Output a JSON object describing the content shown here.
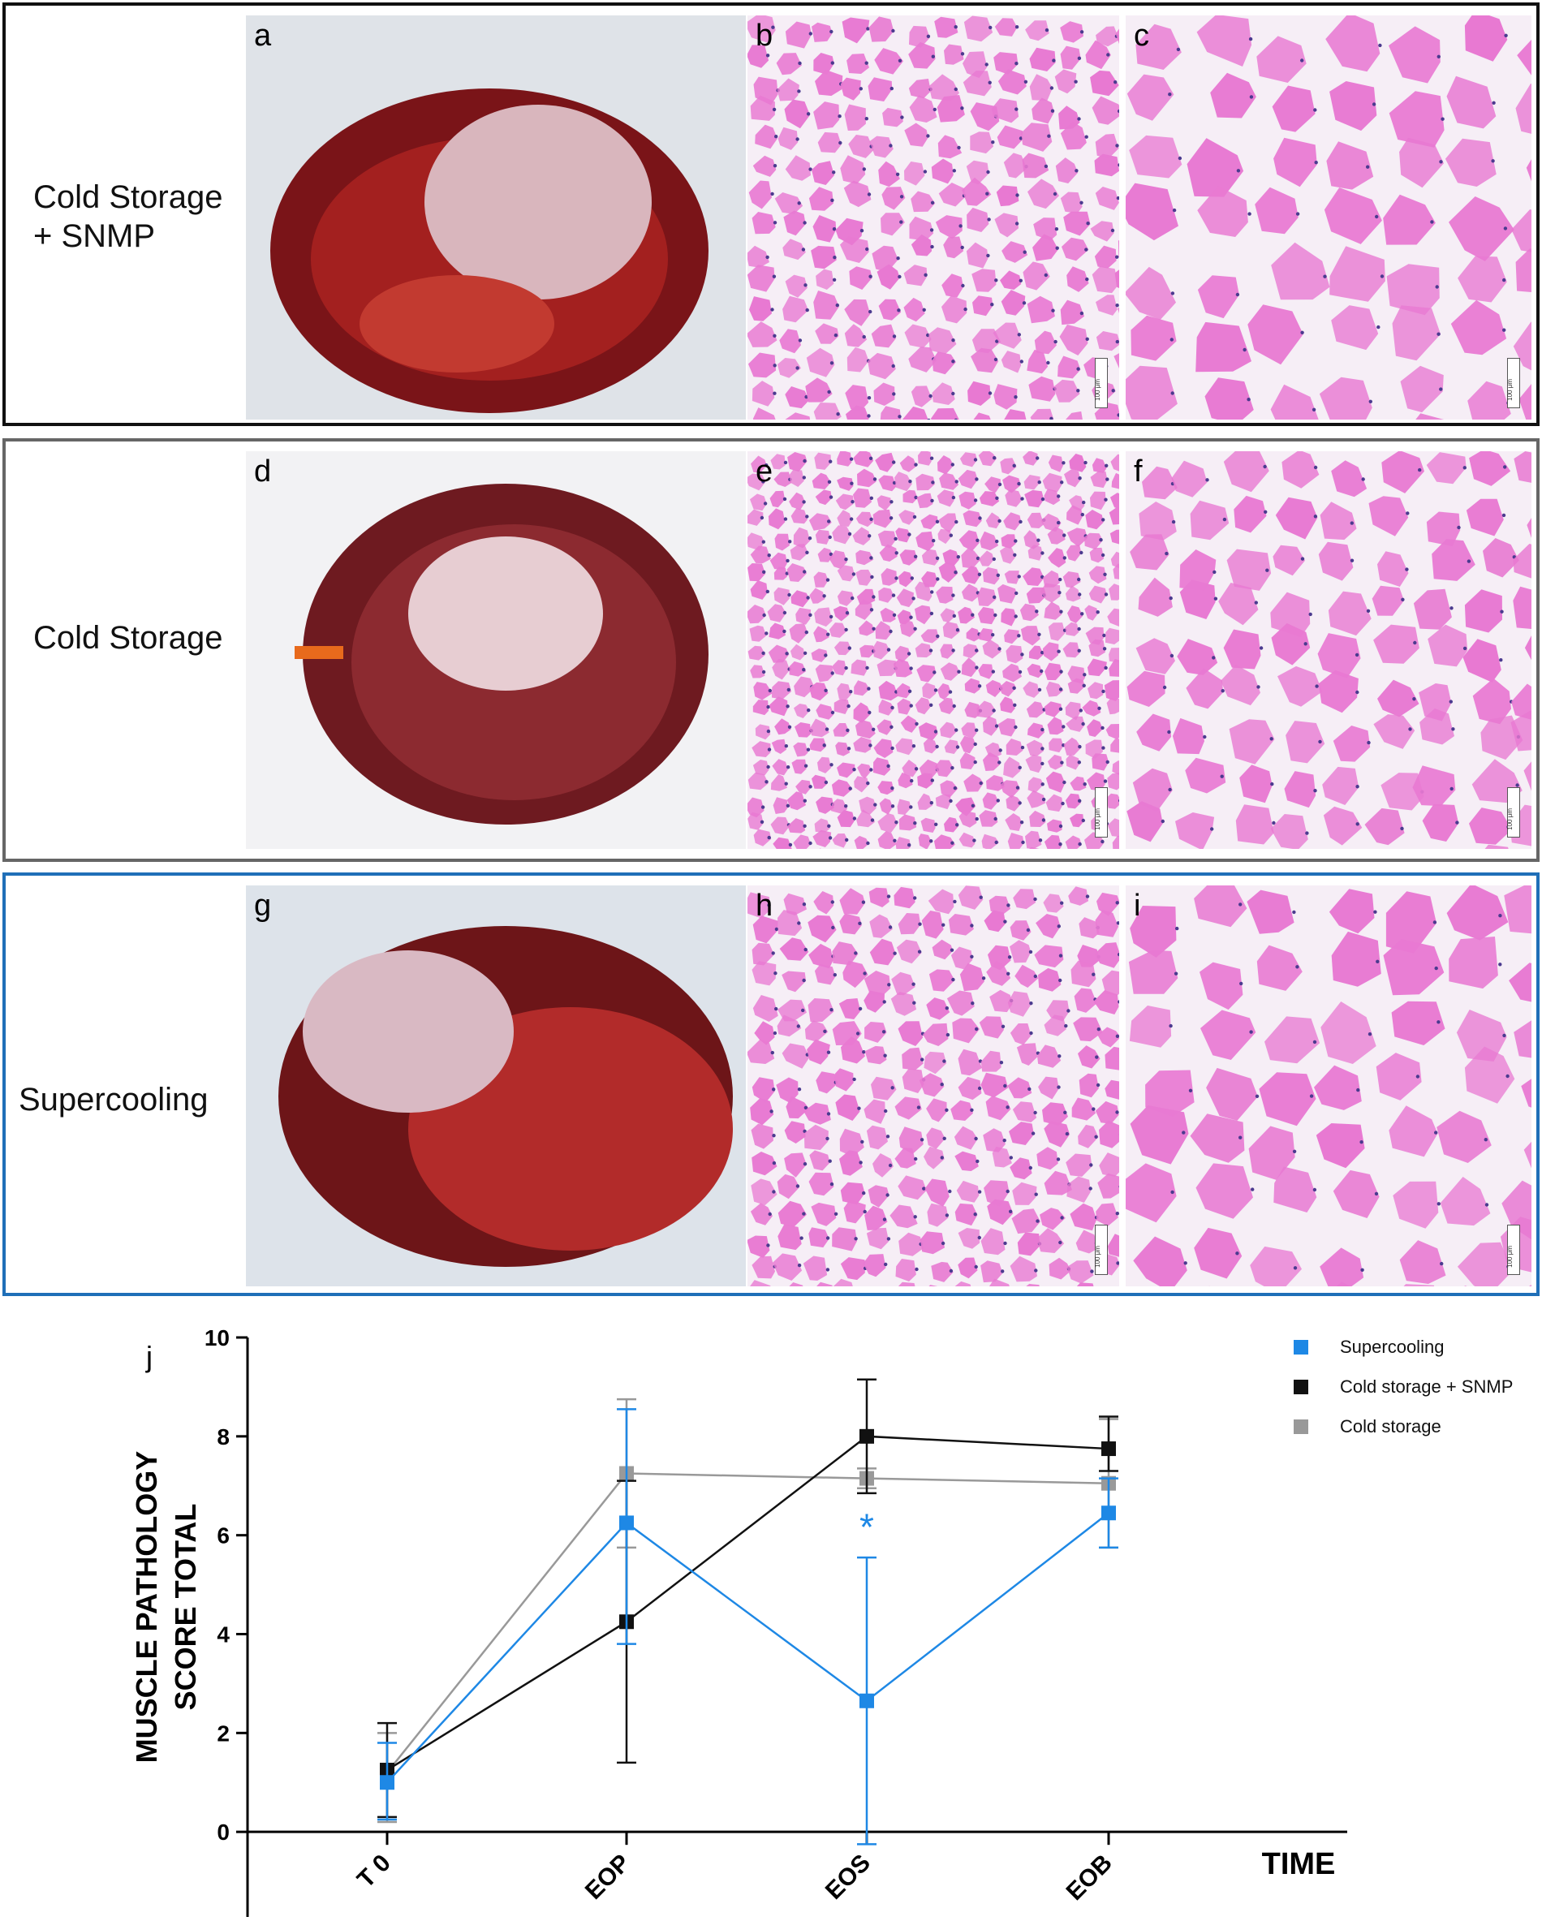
{
  "rows": [
    {
      "label_lines": [
        "Cold Storage",
        "+ SNMP"
      ],
      "panels": [
        "a",
        "b",
        "c"
      ]
    },
    {
      "label_lines": [
        "Cold Storage"
      ],
      "panels": [
        "d",
        "e",
        "f"
      ]
    },
    {
      "label_lines": [
        "Supercooling"
      ],
      "panels": [
        "g",
        "h",
        "i"
      ]
    }
  ],
  "scale_text": "100 μm",
  "colors": {
    "supercooling": "#1e88e5",
    "cold_storage_snmp": "#111111",
    "cold_storage": "#999999",
    "he_stain": "#e879d2",
    "row1_border": "#111111",
    "row2_border": "#666666",
    "row3_border": "#1f6fb8"
  },
  "chart_label": "j",
  "chart_data": {
    "type": "line",
    "categories": [
      "T 0",
      "EOP",
      "EOS",
      "EOB"
    ],
    "ylabel_lines": [
      "MUSCLE PATHOLOGY",
      "SCORE TOTAL"
    ],
    "xlabel": "TIME",
    "ylim": [
      -2,
      10
    ],
    "yticks": [
      -2,
      0,
      2,
      4,
      6,
      8,
      10
    ],
    "series": [
      {
        "name": "Supercooling",
        "values": [
          1.0,
          6.25,
          2.65,
          6.45
        ],
        "err_low": [
          0.25,
          3.8,
          -0.25,
          5.75
        ],
        "err_high": [
          1.8,
          8.55,
          5.55,
          7.15
        ]
      },
      {
        "name": "Cold storage + SNMP",
        "values": [
          1.25,
          4.25,
          8.0,
          7.75
        ],
        "err_low": [
          0.3,
          1.4,
          6.85,
          7.3
        ],
        "err_high": [
          2.2,
          7.1,
          9.15,
          8.4
        ]
      },
      {
        "name": "Cold storage",
        "values": [
          1.2,
          7.25,
          7.15,
          7.05
        ],
        "err_low": [
          0.2,
          5.75,
          6.95,
          5.75
        ],
        "err_high": [
          2.0,
          8.75,
          7.35,
          8.35
        ]
      }
    ],
    "annotation": {
      "text": "*",
      "category": "EOS",
      "y": 6.3
    }
  }
}
